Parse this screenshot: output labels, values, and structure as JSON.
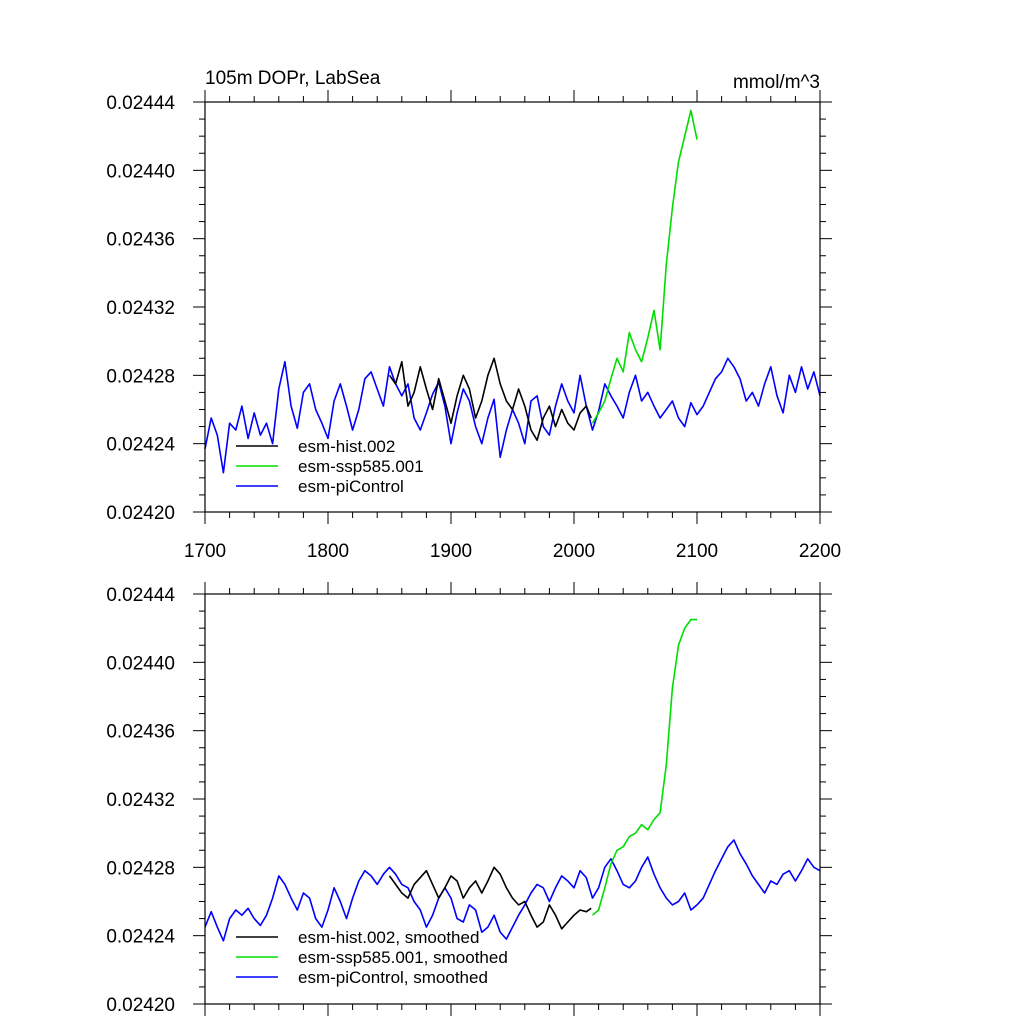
{
  "chart_data": [
    {
      "type": "line",
      "title": "105m DOPr, LabSea",
      "units": "mmol/m^3",
      "xlim": [
        1700,
        2200
      ],
      "ylim": [
        0.0242,
        0.02444
      ],
      "x_ticks": [
        {
          "value": 1700,
          "label": "1700"
        },
        {
          "value": 1800,
          "label": "1800"
        },
        {
          "value": 1900,
          "label": "1900"
        },
        {
          "value": 2000,
          "label": "2000"
        },
        {
          "value": 2100,
          "label": "2100"
        },
        {
          "value": 2200,
          "label": "2200"
        }
      ],
      "y_ticks": [
        {
          "value": 0.0242,
          "label": "0.02420"
        },
        {
          "value": 0.02424,
          "label": "0.02424"
        },
        {
          "value": 0.02428,
          "label": "0.02428"
        },
        {
          "value": 0.02432,
          "label": "0.02432"
        },
        {
          "value": 0.02436,
          "label": "0.02436"
        },
        {
          "value": 0.0244,
          "label": "0.02440"
        },
        {
          "value": 0.02444,
          "label": "0.02444"
        }
      ],
      "legend_position": "bottom-left",
      "series": [
        {
          "name": "esm-piControl",
          "color": "#0000ff",
          "x": [
            1700,
            1705,
            1710,
            1715,
            1720,
            1725,
            1730,
            1735,
            1740,
            1745,
            1750,
            1755,
            1760,
            1765,
            1770,
            1775,
            1780,
            1785,
            1790,
            1795,
            1800,
            1805,
            1810,
            1815,
            1820,
            1825,
            1830,
            1835,
            1840,
            1845,
            1850,
            1855,
            1860,
            1865,
            1870,
            1875,
            1880,
            1885,
            1890,
            1895,
            1900,
            1905,
            1910,
            1915,
            1920,
            1925,
            1930,
            1935,
            1940,
            1945,
            1950,
            1955,
            1960,
            1965,
            1970,
            1975,
            1980,
            1985,
            1990,
            1995,
            2000,
            2005,
            2010,
            2015,
            2020,
            2025,
            2030,
            2035,
            2040,
            2045,
            2050,
            2055,
            2060,
            2065,
            2070,
            2075,
            2080,
            2085,
            2090,
            2095,
            2100,
            2105,
            2110,
            2115,
            2120,
            2125,
            2130,
            2135,
            2140,
            2145,
            2150,
            2155,
            2160,
            2165,
            2170,
            2175,
            2180,
            2185,
            2190,
            2195,
            2200
          ],
          "values": [
            0.024237,
            0.024255,
            0.024245,
            0.024223,
            0.024252,
            0.024248,
            0.024262,
            0.024243,
            0.024258,
            0.024245,
            0.024252,
            0.02424,
            0.024272,
            0.024288,
            0.024262,
            0.024249,
            0.02427,
            0.024275,
            0.02426,
            0.024252,
            0.024243,
            0.024265,
            0.024275,
            0.024262,
            0.024248,
            0.02426,
            0.024278,
            0.024282,
            0.024272,
            0.024262,
            0.024285,
            0.024275,
            0.024268,
            0.024275,
            0.024255,
            0.024248,
            0.024258,
            0.024269,
            0.024276,
            0.024262,
            0.02424,
            0.024258,
            0.024272,
            0.024265,
            0.02425,
            0.02424,
            0.024255,
            0.024266,
            0.024232,
            0.024248,
            0.02426,
            0.024252,
            0.02424,
            0.024265,
            0.024268,
            0.02425,
            0.024245,
            0.024262,
            0.024275,
            0.024265,
            0.024258,
            0.02428,
            0.024262,
            0.024248,
            0.024259,
            0.024275,
            0.024268,
            0.024262,
            0.024255,
            0.02427,
            0.02428,
            0.024265,
            0.02427,
            0.024262,
            0.024255,
            0.02426,
            0.024265,
            0.024255,
            0.02425,
            0.024264,
            0.024257,
            0.024262,
            0.02427,
            0.024278,
            0.024282,
            0.02429,
            0.024285,
            0.024278,
            0.024265,
            0.02427,
            0.024262,
            0.024275,
            0.024285,
            0.024268,
            0.024258,
            0.02428,
            0.02427,
            0.024285,
            0.024272,
            0.024282,
            0.024268
          ]
        },
        {
          "name": "esm-hist.002",
          "color": "#000000",
          "x": [
            1850,
            1855,
            1860,
            1865,
            1870,
            1875,
            1880,
            1885,
            1890,
            1895,
            1900,
            1905,
            1910,
            1915,
            1920,
            1925,
            1930,
            1935,
            1940,
            1945,
            1950,
            1955,
            1960,
            1965,
            1970,
            1975,
            1980,
            1985,
            1990,
            1995,
            2000,
            2005,
            2010,
            2014
          ],
          "values": [
            0.02428,
            0.024275,
            0.024288,
            0.024262,
            0.02427,
            0.024285,
            0.024272,
            0.02426,
            0.024278,
            0.024265,
            0.024252,
            0.024268,
            0.02428,
            0.024272,
            0.024255,
            0.024265,
            0.02428,
            0.02429,
            0.024275,
            0.024265,
            0.02426,
            0.024272,
            0.024262,
            0.024248,
            0.024242,
            0.024255,
            0.024262,
            0.02425,
            0.02426,
            0.024252,
            0.024248,
            0.024258,
            0.024262,
            0.024255
          ]
        },
        {
          "name": "esm-ssp585.001",
          "color": "#00dd00",
          "x": [
            2015,
            2020,
            2025,
            2030,
            2035,
            2040,
            2045,
            2050,
            2055,
            2060,
            2065,
            2070,
            2075,
            2080,
            2085,
            2090,
            2095,
            2100
          ],
          "values": [
            0.024252,
            0.024258,
            0.024265,
            0.024278,
            0.02429,
            0.024282,
            0.024305,
            0.024295,
            0.024288,
            0.024302,
            0.024318,
            0.024295,
            0.024345,
            0.024378,
            0.024405,
            0.02442,
            0.024435,
            0.024418
          ]
        }
      ]
    },
    {
      "type": "line",
      "xlim": [
        1700,
        2200
      ],
      "ylim": [
        0.0242,
        0.02444
      ],
      "y_ticks": [
        {
          "value": 0.0242,
          "label": "0.02420"
        },
        {
          "value": 0.02424,
          "label": "0.02424"
        },
        {
          "value": 0.02428,
          "label": "0.02428"
        },
        {
          "value": 0.02432,
          "label": "0.02432"
        },
        {
          "value": 0.02436,
          "label": "0.02436"
        },
        {
          "value": 0.0244,
          "label": "0.02440"
        },
        {
          "value": 0.02444,
          "label": "0.02444"
        }
      ],
      "legend_position": "bottom-left",
      "series": [
        {
          "name": "esm-piControl, smoothed",
          "color": "#0000ff",
          "x": [
            1700,
            1705,
            1710,
            1715,
            1720,
            1725,
            1730,
            1735,
            1740,
            1745,
            1750,
            1755,
            1760,
            1765,
            1770,
            1775,
            1780,
            1785,
            1790,
            1795,
            1800,
            1805,
            1810,
            1815,
            1820,
            1825,
            1830,
            1835,
            1840,
            1845,
            1850,
            1855,
            1860,
            1865,
            1870,
            1875,
            1880,
            1885,
            1890,
            1895,
            1900,
            1905,
            1910,
            1915,
            1920,
            1925,
            1930,
            1935,
            1940,
            1945,
            1950,
            1955,
            1960,
            1965,
            1970,
            1975,
            1980,
            1985,
            1990,
            1995,
            2000,
            2005,
            2010,
            2015,
            2020,
            2025,
            2030,
            2035,
            2040,
            2045,
            2050,
            2055,
            2060,
            2065,
            2070,
            2075,
            2080,
            2085,
            2090,
            2095,
            2100,
            2105,
            2110,
            2115,
            2120,
            2125,
            2130,
            2135,
            2140,
            2145,
            2150,
            2155,
            2160,
            2165,
            2170,
            2175,
            2180,
            2185,
            2190,
            2195,
            2200
          ],
          "values": [
            0.024245,
            0.024254,
            0.024245,
            0.024237,
            0.02425,
            0.024255,
            0.024252,
            0.024256,
            0.02425,
            0.024246,
            0.024252,
            0.024262,
            0.024275,
            0.02427,
            0.024262,
            0.024255,
            0.024265,
            0.024262,
            0.02425,
            0.024245,
            0.024255,
            0.024268,
            0.02426,
            0.02425,
            0.024262,
            0.024272,
            0.024278,
            0.024275,
            0.02427,
            0.024276,
            0.02428,
            0.024276,
            0.02427,
            0.024268,
            0.02426,
            0.024255,
            0.024245,
            0.024252,
            0.024262,
            0.024268,
            0.024262,
            0.02425,
            0.024248,
            0.024258,
            0.024255,
            0.024242,
            0.024245,
            0.024252,
            0.024242,
            0.024238,
            0.024245,
            0.024252,
            0.024258,
            0.024265,
            0.02427,
            0.024268,
            0.02426,
            0.024268,
            0.024275,
            0.024272,
            0.024268,
            0.024278,
            0.024274,
            0.024262,
            0.024268,
            0.02428,
            0.024285,
            0.024278,
            0.02427,
            0.024268,
            0.024272,
            0.02428,
            0.024286,
            0.024276,
            0.024268,
            0.024262,
            0.024258,
            0.02426,
            0.024265,
            0.024255,
            0.024258,
            0.024262,
            0.02427,
            0.024278,
            0.024285,
            0.024292,
            0.024296,
            0.024288,
            0.024282,
            0.024275,
            0.02427,
            0.024265,
            0.024272,
            0.02427,
            0.024276,
            0.024278,
            0.024272,
            0.024278,
            0.024285,
            0.02428,
            0.024278
          ]
        },
        {
          "name": "esm-hist.002, smoothed",
          "color": "#000000",
          "x": [
            1850,
            1855,
            1860,
            1865,
            1870,
            1875,
            1880,
            1885,
            1890,
            1895,
            1900,
            1905,
            1910,
            1915,
            1920,
            1925,
            1930,
            1935,
            1940,
            1945,
            1950,
            1955,
            1960,
            1965,
            1970,
            1975,
            1980,
            1985,
            1990,
            1995,
            2000,
            2005,
            2010,
            2014
          ],
          "values": [
            0.024275,
            0.02427,
            0.024265,
            0.024262,
            0.02427,
            0.024274,
            0.024278,
            0.02427,
            0.024262,
            0.024268,
            0.024275,
            0.024272,
            0.024262,
            0.024268,
            0.024272,
            0.024265,
            0.024272,
            0.02428,
            0.024276,
            0.024268,
            0.024262,
            0.024258,
            0.02426,
            0.024252,
            0.024245,
            0.024248,
            0.024258,
            0.024252,
            0.024244,
            0.024248,
            0.024252,
            0.024255,
            0.024254,
            0.024256
          ]
        },
        {
          "name": "esm-ssp585.001, smoothed",
          "color": "#00dd00",
          "x": [
            2015,
            2020,
            2025,
            2030,
            2035,
            2040,
            2045,
            2050,
            2055,
            2060,
            2065,
            2070,
            2075,
            2080,
            2085,
            2090,
            2095,
            2100
          ],
          "values": [
            0.024252,
            0.024255,
            0.024268,
            0.024282,
            0.02429,
            0.024292,
            0.024298,
            0.0243,
            0.024305,
            0.024302,
            0.024308,
            0.024312,
            0.02434,
            0.024385,
            0.02441,
            0.02442,
            0.024425,
            0.024425
          ]
        }
      ]
    }
  ]
}
